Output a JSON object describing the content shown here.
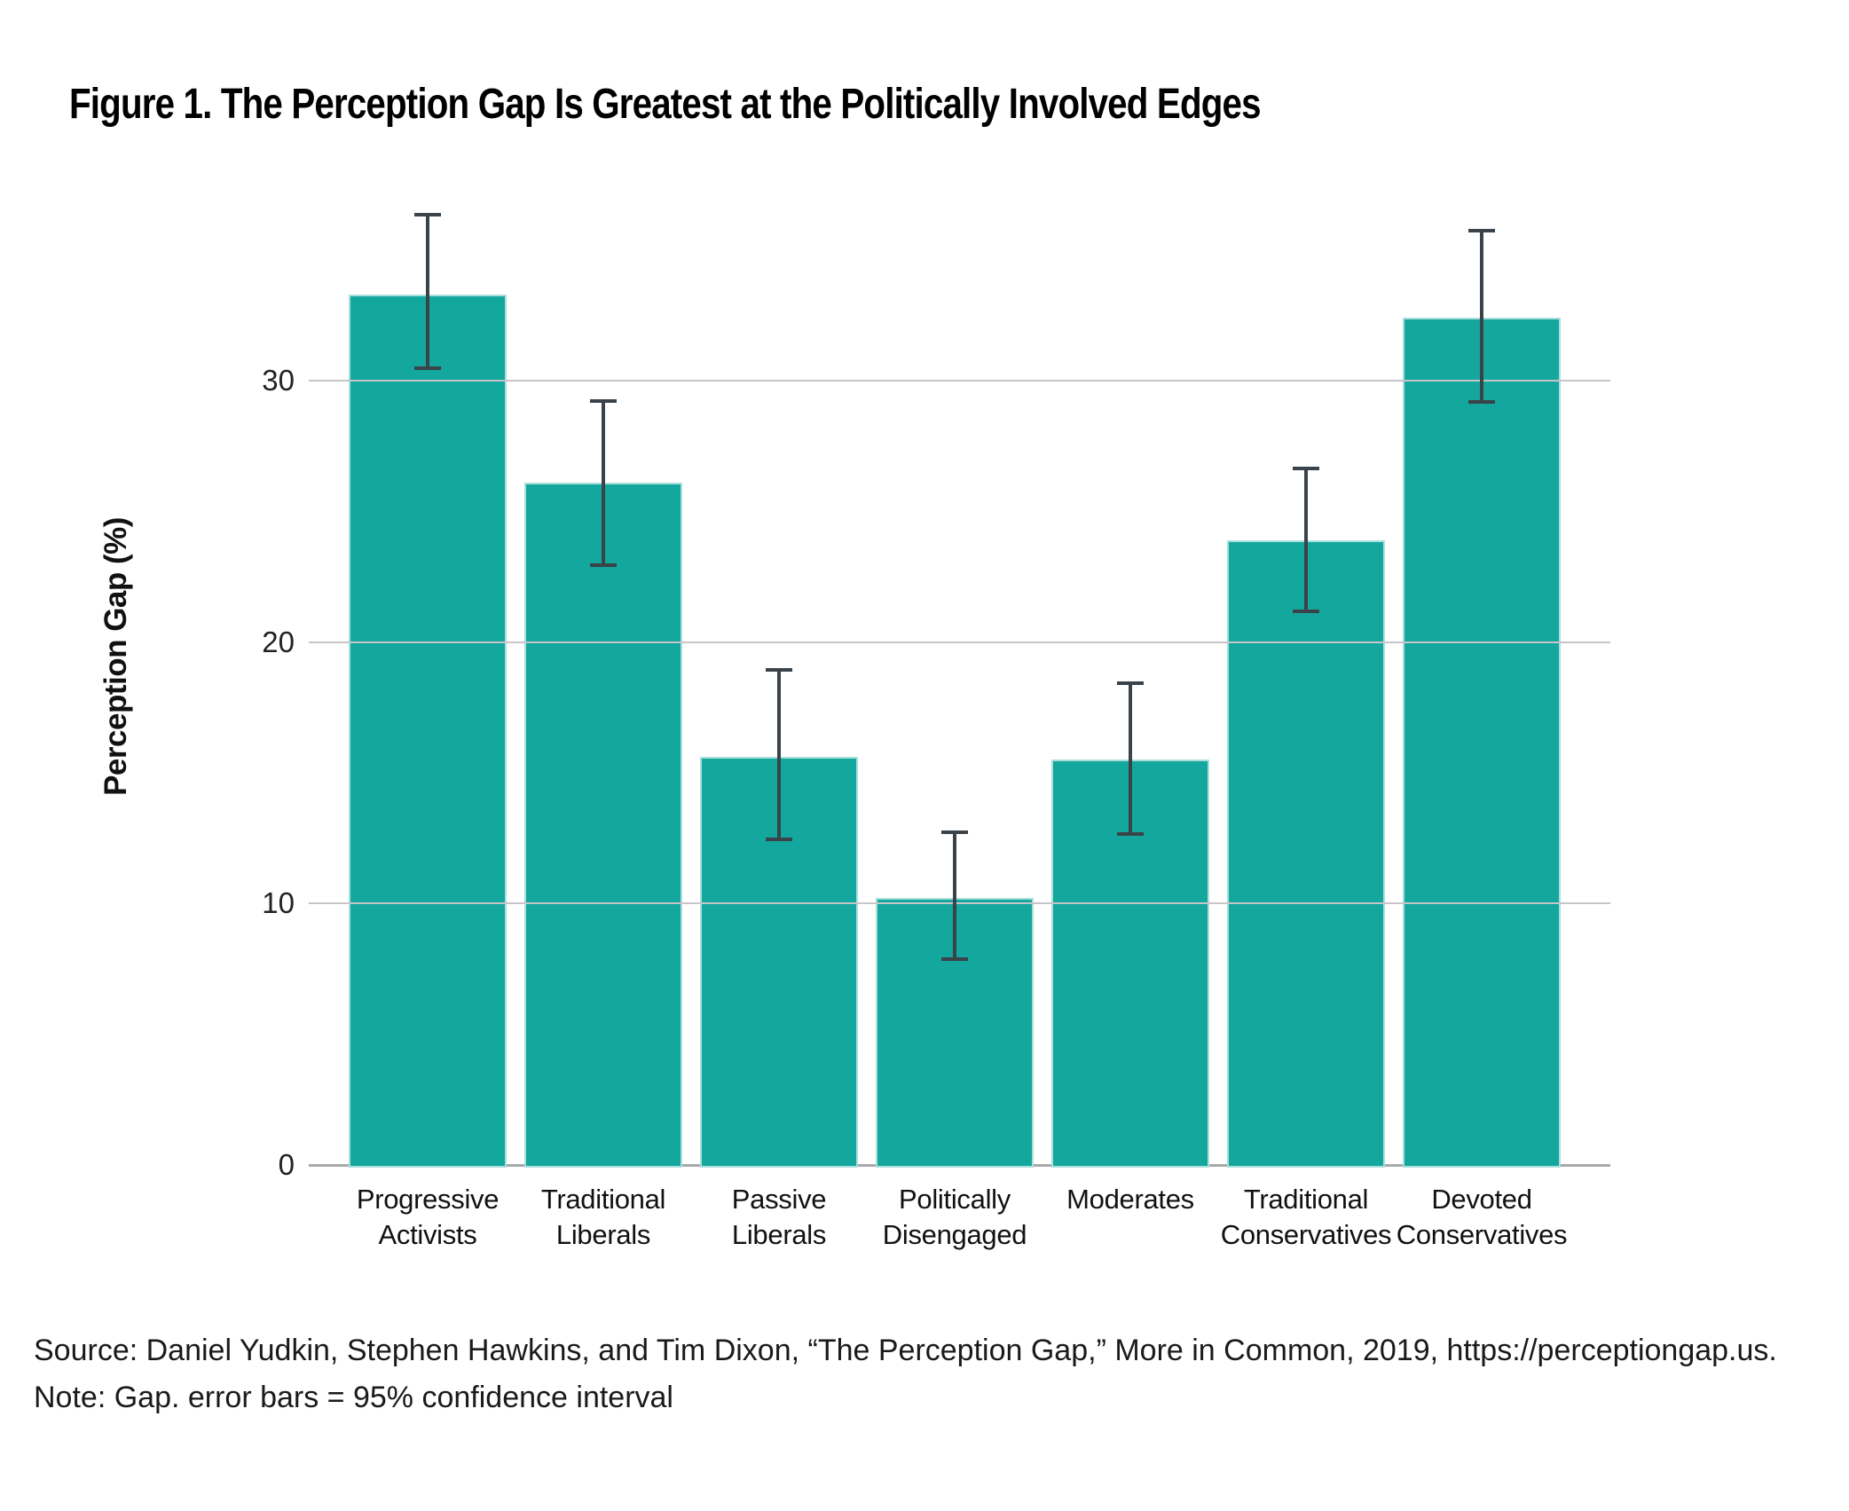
{
  "figure": {
    "title": "Figure 1. The Perception Gap Is Greatest at the Politically Involved Edges"
  },
  "chart_data": {
    "type": "bar",
    "title": "Figure 1. The Perception Gap Is Greatest at the Politically Involved Edges",
    "ylabel": "Perception Gap (%)",
    "xlabel": "",
    "categories": [
      "Progressive Activists",
      "Traditional Liberals",
      "Passive Liberals",
      "Politically Disengaged",
      "Moderates",
      "Traditional Conservatives",
      "Devoted Conservatives"
    ],
    "category_label_lines": [
      [
        "Progressive",
        "Activists"
      ],
      [
        "Traditional",
        "Liberals"
      ],
      [
        "Passive",
        "Liberals"
      ],
      [
        "Politically",
        "Disengaged"
      ],
      [
        "Moderates"
      ],
      [
        "Traditional",
        "Conservatives"
      ],
      [
        "Devoted",
        "Conservatives"
      ]
    ],
    "values": [
      33.3,
      26.1,
      15.6,
      10.2,
      15.5,
      23.9,
      32.4
    ],
    "error_bars": {
      "kind": "95% confidence interval",
      "low": [
        30.4,
        22.9,
        12.4,
        7.8,
        12.6,
        21.1,
        29.1
      ],
      "high": [
        36.4,
        29.3,
        19.0,
        12.8,
        18.5,
        26.7,
        35.8
      ]
    },
    "yticks": [
      0,
      10,
      20,
      30
    ],
    "ylim": [
      0,
      38.8
    ],
    "grid": "horizontal",
    "legend": "none",
    "colors": {
      "bar": "#14a79d",
      "bar_edge": "#c4e9e6",
      "error_bar": "#3a424a",
      "gridline": "#c8c5c8",
      "baseline": "#a9a9a9",
      "text": "#1a1a1a"
    }
  },
  "footer": {
    "source": "Source: Daniel Yudkin, Stephen Hawkins, and Tim Dixon, “The Perception Gap,” More in Common, 2019, https://perceptiongap.us.",
    "note": "Note: Gap. error bars = 95% confidence interval"
  }
}
